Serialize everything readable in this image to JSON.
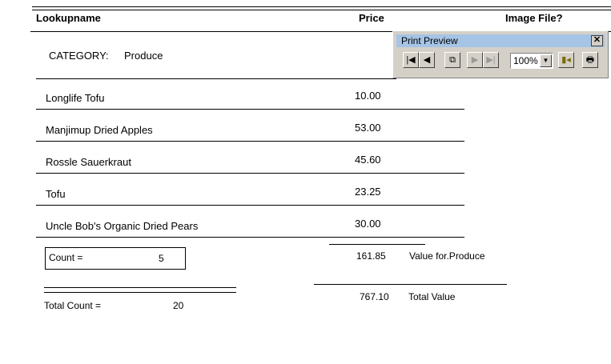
{
  "header": {
    "lookupname": "Lookupname",
    "price": "Price",
    "image_file": "Image File?"
  },
  "category": {
    "label": "CATEGORY:",
    "value": "Produce"
  },
  "rows": [
    {
      "name": "Longlife Tofu",
      "price": "10.00"
    },
    {
      "name": "Manjimup Dried Apples",
      "price": "53.00"
    },
    {
      "name": "Rossle Sauerkraut",
      "price": "45.60"
    },
    {
      "name": "Tofu",
      "price": "23.25"
    },
    {
      "name": "Uncle Bob's Organic Dried Pears",
      "price": "30.00"
    }
  ],
  "group_footer": {
    "count_label": "Count =",
    "count": "5",
    "value": "161.85",
    "value_label": "Value for.Produce"
  },
  "report_footer": {
    "total_count_label": "Total Count =",
    "total_count": "20",
    "total_value": "767.10",
    "total_value_label": "Total Value"
  },
  "print_preview": {
    "title": "Print Preview",
    "close": "✕",
    "zoom": "100%",
    "icons": [
      "first-page",
      "prev-page",
      "multi-page",
      "next-page",
      "last-page",
      "zoom-dropdown",
      "close-preview",
      "print"
    ]
  }
}
